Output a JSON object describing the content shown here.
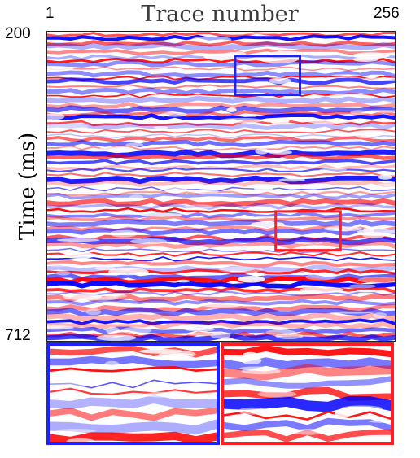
{
  "figure": {
    "x_axis_title": "Trace number",
    "y_axis_title": "Time (ms)",
    "x_tick_min": "1",
    "x_tick_max": "256",
    "y_tick_top": "200",
    "y_tick_bottom": "712"
  },
  "colors": {
    "positive": "#ff0000",
    "negative": "#0000ff",
    "zero": "#ffffff",
    "blue_box": "#1e22ff",
    "red_box": "#ff1e25"
  },
  "insets": [
    {
      "name": "blue-inset",
      "color": "blue"
    },
    {
      "name": "red-inset",
      "color": "red"
    }
  ]
}
